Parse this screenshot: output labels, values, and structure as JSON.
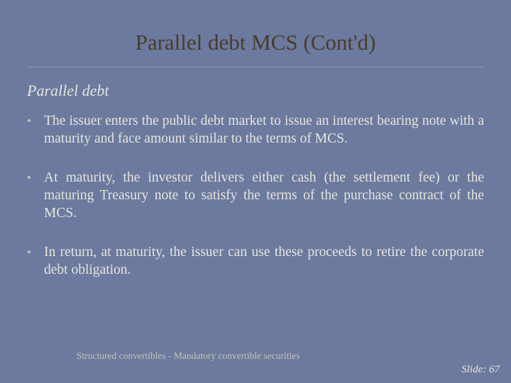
{
  "slide": {
    "background_color": "#6b7a9e",
    "text_color": "#e8e4dc",
    "muted_color": "#c9c2b4",
    "title_color": "#4a3b2a",
    "underline_color": "#8a95b3",
    "title": "Parallel debt MCS (Cont'd)",
    "title_fontsize": 31,
    "subtitle": "Parallel debt",
    "subtitle_fontsize": 22,
    "body_fontsize": 19.5,
    "bullets": [
      "The issuer enters the public debt market to issue an interest bearing note with a maturity and face amount similar to the terms of MCS.",
      "At maturity, the investor delivers either cash (the settlement fee) or the maturing Treasury note to satisfy the terms of the purchase contract of the MCS.",
      "In return, at maturity, the issuer can use these proceeds to retire the corporate debt obligation."
    ],
    "footer": {
      "left": "Structured convertibles - Mandatory convertible securities",
      "right_label": "Slide:",
      "right_number": "67"
    }
  }
}
